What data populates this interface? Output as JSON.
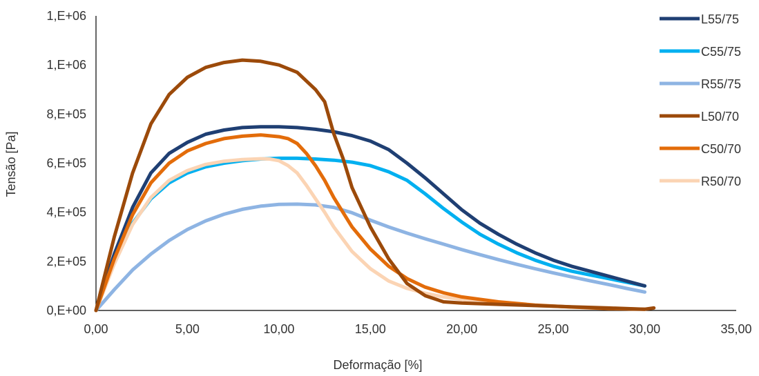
{
  "chart_data": {
    "type": "line",
    "title": "",
    "xlabel": "Deformação [%]",
    "ylabel": "Tensão [Pa]",
    "xlim": [
      0,
      35
    ],
    "ylim": [
      0,
      1200000
    ],
    "x_ticks": [
      0,
      5,
      10,
      15,
      20,
      25,
      30,
      35
    ],
    "x_tick_labels": [
      "0,00",
      "5,00",
      "10,00",
      "15,00",
      "20,00",
      "25,00",
      "30,00",
      "35,00"
    ],
    "y_ticks": [
      0,
      200000,
      400000,
      600000,
      800000,
      1000000,
      1200000
    ],
    "y_tick_labels": [
      "0,E+00",
      "2,E+05",
      "4,E+05",
      "6,E+05",
      "8,E+05",
      "1,E+06",
      "1,E+06"
    ],
    "grid": false,
    "legend_position": "right",
    "series": [
      {
        "name": "L55/75",
        "color": "#1f3f73",
        "x": [
          0,
          1,
          2,
          3,
          4,
          5,
          6,
          7,
          8,
          9,
          10,
          11,
          12,
          13,
          14,
          15,
          16,
          17,
          18,
          19,
          20,
          21,
          22,
          23,
          24,
          25,
          26,
          27,
          28,
          29,
          30
        ],
        "y": [
          0,
          230000,
          420000,
          560000,
          640000,
          685000,
          718000,
          735000,
          745000,
          748000,
          748000,
          745000,
          738000,
          728000,
          712000,
          690000,
          655000,
          600000,
          540000,
          475000,
          410000,
          355000,
          310000,
          270000,
          235000,
          205000,
          180000,
          160000,
          140000,
          120000,
          100000
        ]
      },
      {
        "name": "C55/75",
        "color": "#00b0f0",
        "x": [
          0,
          1,
          2,
          3,
          4,
          5,
          6,
          7,
          8,
          9,
          10,
          11,
          12,
          13,
          14,
          15,
          16,
          17,
          18,
          19,
          20,
          21,
          22,
          23,
          24,
          25,
          26,
          27,
          28,
          29,
          30
        ],
        "y": [
          0,
          200000,
          355000,
          455000,
          520000,
          560000,
          585000,
          600000,
          610000,
          617000,
          620000,
          620000,
          617000,
          612000,
          604000,
          590000,
          565000,
          530000,
          475000,
          415000,
          360000,
          310000,
          270000,
          235000,
          205000,
          180000,
          160000,
          145000,
          130000,
          115000,
          100000
        ]
      },
      {
        "name": "R55/75",
        "color": "#8eb4e3",
        "x": [
          0,
          1,
          2,
          3,
          4,
          5,
          6,
          7,
          8,
          9,
          10,
          11,
          12,
          13,
          14,
          15,
          16,
          17,
          18,
          19,
          20,
          21,
          22,
          23,
          24,
          25,
          26,
          27,
          28,
          29,
          30
        ],
        "y": [
          0,
          85000,
          165000,
          230000,
          285000,
          330000,
          365000,
          392000,
          412000,
          425000,
          432000,
          433000,
          430000,
          420000,
          398000,
          368000,
          340000,
          315000,
          292000,
          270000,
          248000,
          227000,
          207000,
          188000,
          170000,
          153000,
          137000,
          121000,
          106000,
          90000,
          75000
        ]
      },
      {
        "name": "L50/70",
        "color": "#9c4a0a",
        "x": [
          0,
          1,
          2,
          3,
          4,
          5,
          6,
          7,
          8,
          9,
          10,
          11,
          12,
          12.5,
          13,
          13.5,
          14,
          15,
          16,
          17,
          18,
          19,
          20,
          22,
          24,
          26,
          28,
          30,
          30.5
        ],
        "y": [
          0,
          300000,
          560000,
          760000,
          880000,
          950000,
          990000,
          1010000,
          1020000,
          1015000,
          1000000,
          970000,
          900000,
          850000,
          720000,
          620000,
          500000,
          340000,
          210000,
          110000,
          60000,
          35000,
          30000,
          25000,
          20000,
          15000,
          10000,
          5000,
          10000
        ]
      },
      {
        "name": "C50/70",
        "color": "#e36c0a",
        "x": [
          0,
          1,
          2,
          3,
          4,
          5,
          6,
          7,
          8,
          9,
          10,
          10.5,
          11,
          11.5,
          12,
          12.5,
          13,
          14,
          15,
          16,
          17,
          18,
          19,
          20,
          22,
          24,
          26,
          28,
          30
        ],
        "y": [
          0,
          210000,
          390000,
          520000,
          600000,
          650000,
          680000,
          700000,
          710000,
          715000,
          708000,
          700000,
          680000,
          640000,
          590000,
          530000,
          460000,
          340000,
          250000,
          180000,
          130000,
          95000,
          72000,
          55000,
          35000,
          22000,
          14000,
          8000,
          5000
        ]
      },
      {
        "name": "R50/70",
        "color": "#fbd4b4",
        "x": [
          0,
          1,
          2,
          3,
          4,
          5,
          6,
          7,
          8,
          9,
          9.5,
          10,
          10.5,
          11,
          11.5,
          12,
          12.5,
          13,
          14,
          15,
          16,
          17,
          18,
          19,
          20,
          22,
          24,
          26,
          28,
          30
        ],
        "y": [
          0,
          190000,
          350000,
          460000,
          530000,
          570000,
          595000,
          608000,
          615000,
          618000,
          617000,
          610000,
          590000,
          560000,
          510000,
          455000,
          400000,
          340000,
          240000,
          170000,
          120000,
          90000,
          70000,
          55000,
          45000,
          30000,
          20000,
          14000,
          9000,
          5000
        ]
      }
    ]
  }
}
